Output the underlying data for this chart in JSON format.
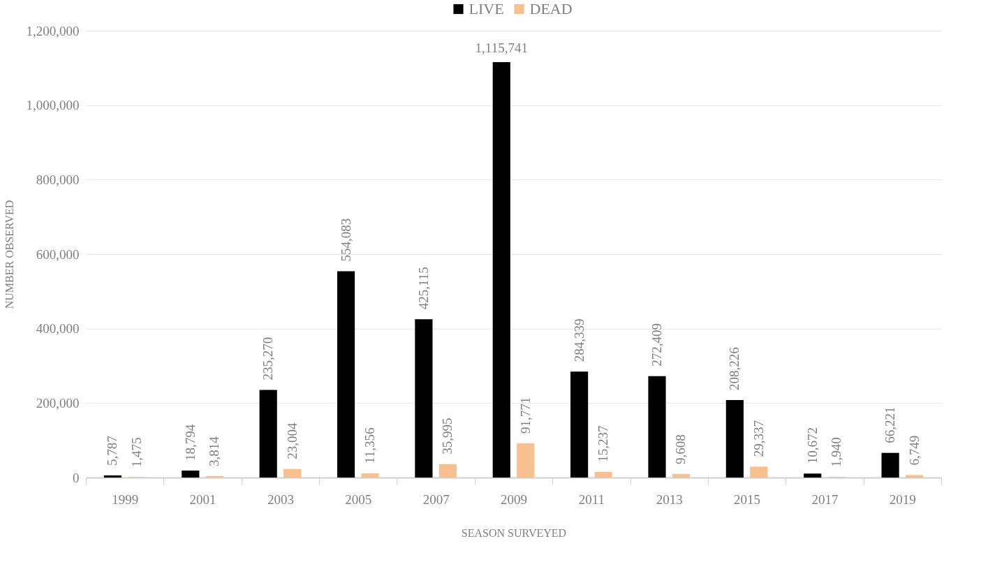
{
  "chart_data": {
    "type": "bar",
    "xlabel": "SEASON SURVEYED",
    "ylabel": "NUMBER OBSERVED",
    "categories": [
      "1999",
      "2001",
      "2003",
      "2005",
      "2007",
      "2009",
      "2011",
      "2013",
      "2015",
      "2017",
      "2019"
    ],
    "series": [
      {
        "name": "LIVE",
        "color": "#000000",
        "values": [
          5787,
          18794,
          235270,
          554083,
          425115,
          1115741,
          284339,
          272409,
          208226,
          10672,
          66221
        ],
        "value_labels": [
          "5,787",
          "18,794",
          "235,270",
          "554,083",
          "425,115",
          "1,115,741",
          "284,339",
          "272,409",
          "208,226",
          "10,672",
          "66,221"
        ]
      },
      {
        "name": "DEAD",
        "color": "#f8c08e",
        "values": [
          1475,
          3814,
          23004,
          11356,
          35995,
          91771,
          15237,
          9608,
          29337,
          1940,
          6749
        ],
        "value_labels": [
          "1,475",
          "3,814",
          "23,004",
          "11,356",
          "35,995",
          "91,771",
          "15,237",
          "9,608",
          "29,337",
          "1,940",
          "6,749"
        ]
      }
    ],
    "ylim": [
      0,
      1200000
    ],
    "yticks": [
      {
        "value": 0,
        "label": "0"
      },
      {
        "value": 200000,
        "label": "200,000"
      },
      {
        "value": 400000,
        "label": "400,000"
      },
      {
        "value": 600000,
        "label": "600,000"
      },
      {
        "value": 800000,
        "label": "800,000"
      },
      {
        "value": 1000000,
        "label": "1,000,000"
      },
      {
        "value": 1200000,
        "label": "1,200,000"
      }
    ],
    "grid": "y",
    "legend": "top"
  }
}
